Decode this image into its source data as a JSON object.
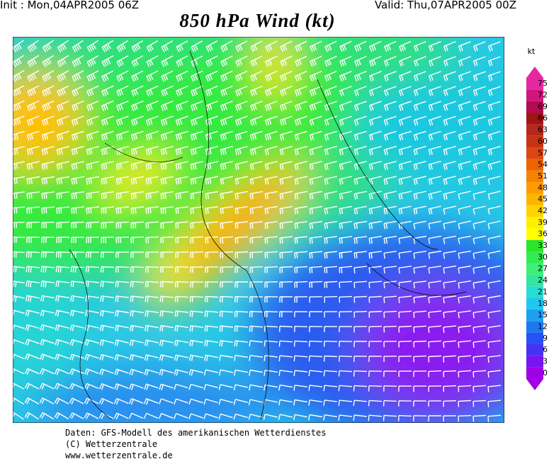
{
  "header": {
    "init": "Init : Mon,04APR2005 06Z",
    "valid": "Valid: Thu,07APR2005 00Z",
    "title": "850 hPa Wind (kt)"
  },
  "colorbar": {
    "unit": "kt",
    "ticks": [
      0,
      3,
      6,
      9,
      12,
      15,
      18,
      21,
      24,
      27,
      30,
      33,
      36,
      39,
      42,
      45,
      48,
      51,
      54,
      57,
      60,
      63,
      66,
      69,
      72,
      75
    ],
    "colors": [
      "#a000e6",
      "#7814f0",
      "#4632f5",
      "#2850f5",
      "#1e78f0",
      "#1ea0f0",
      "#1ec8f0",
      "#28dcd2",
      "#32e6a0",
      "#3cf078",
      "#32ec50",
      "#28e628",
      "#ffff00",
      "#fff000",
      "#ffd200",
      "#ffb400",
      "#ff9b00",
      "#f58200",
      "#eb6400",
      "#dc4614",
      "#c83214",
      "#b4281e",
      "#a01414",
      "#b40a50",
      "#d2147d",
      "#e628a0"
    ]
  },
  "footer": {
    "line1": "Daten: GFS-Modell des amerikanischen Wetterdienstes",
    "line2": "(C) Wetterzentrale",
    "line3": "www.wetterzentrale.de"
  }
}
